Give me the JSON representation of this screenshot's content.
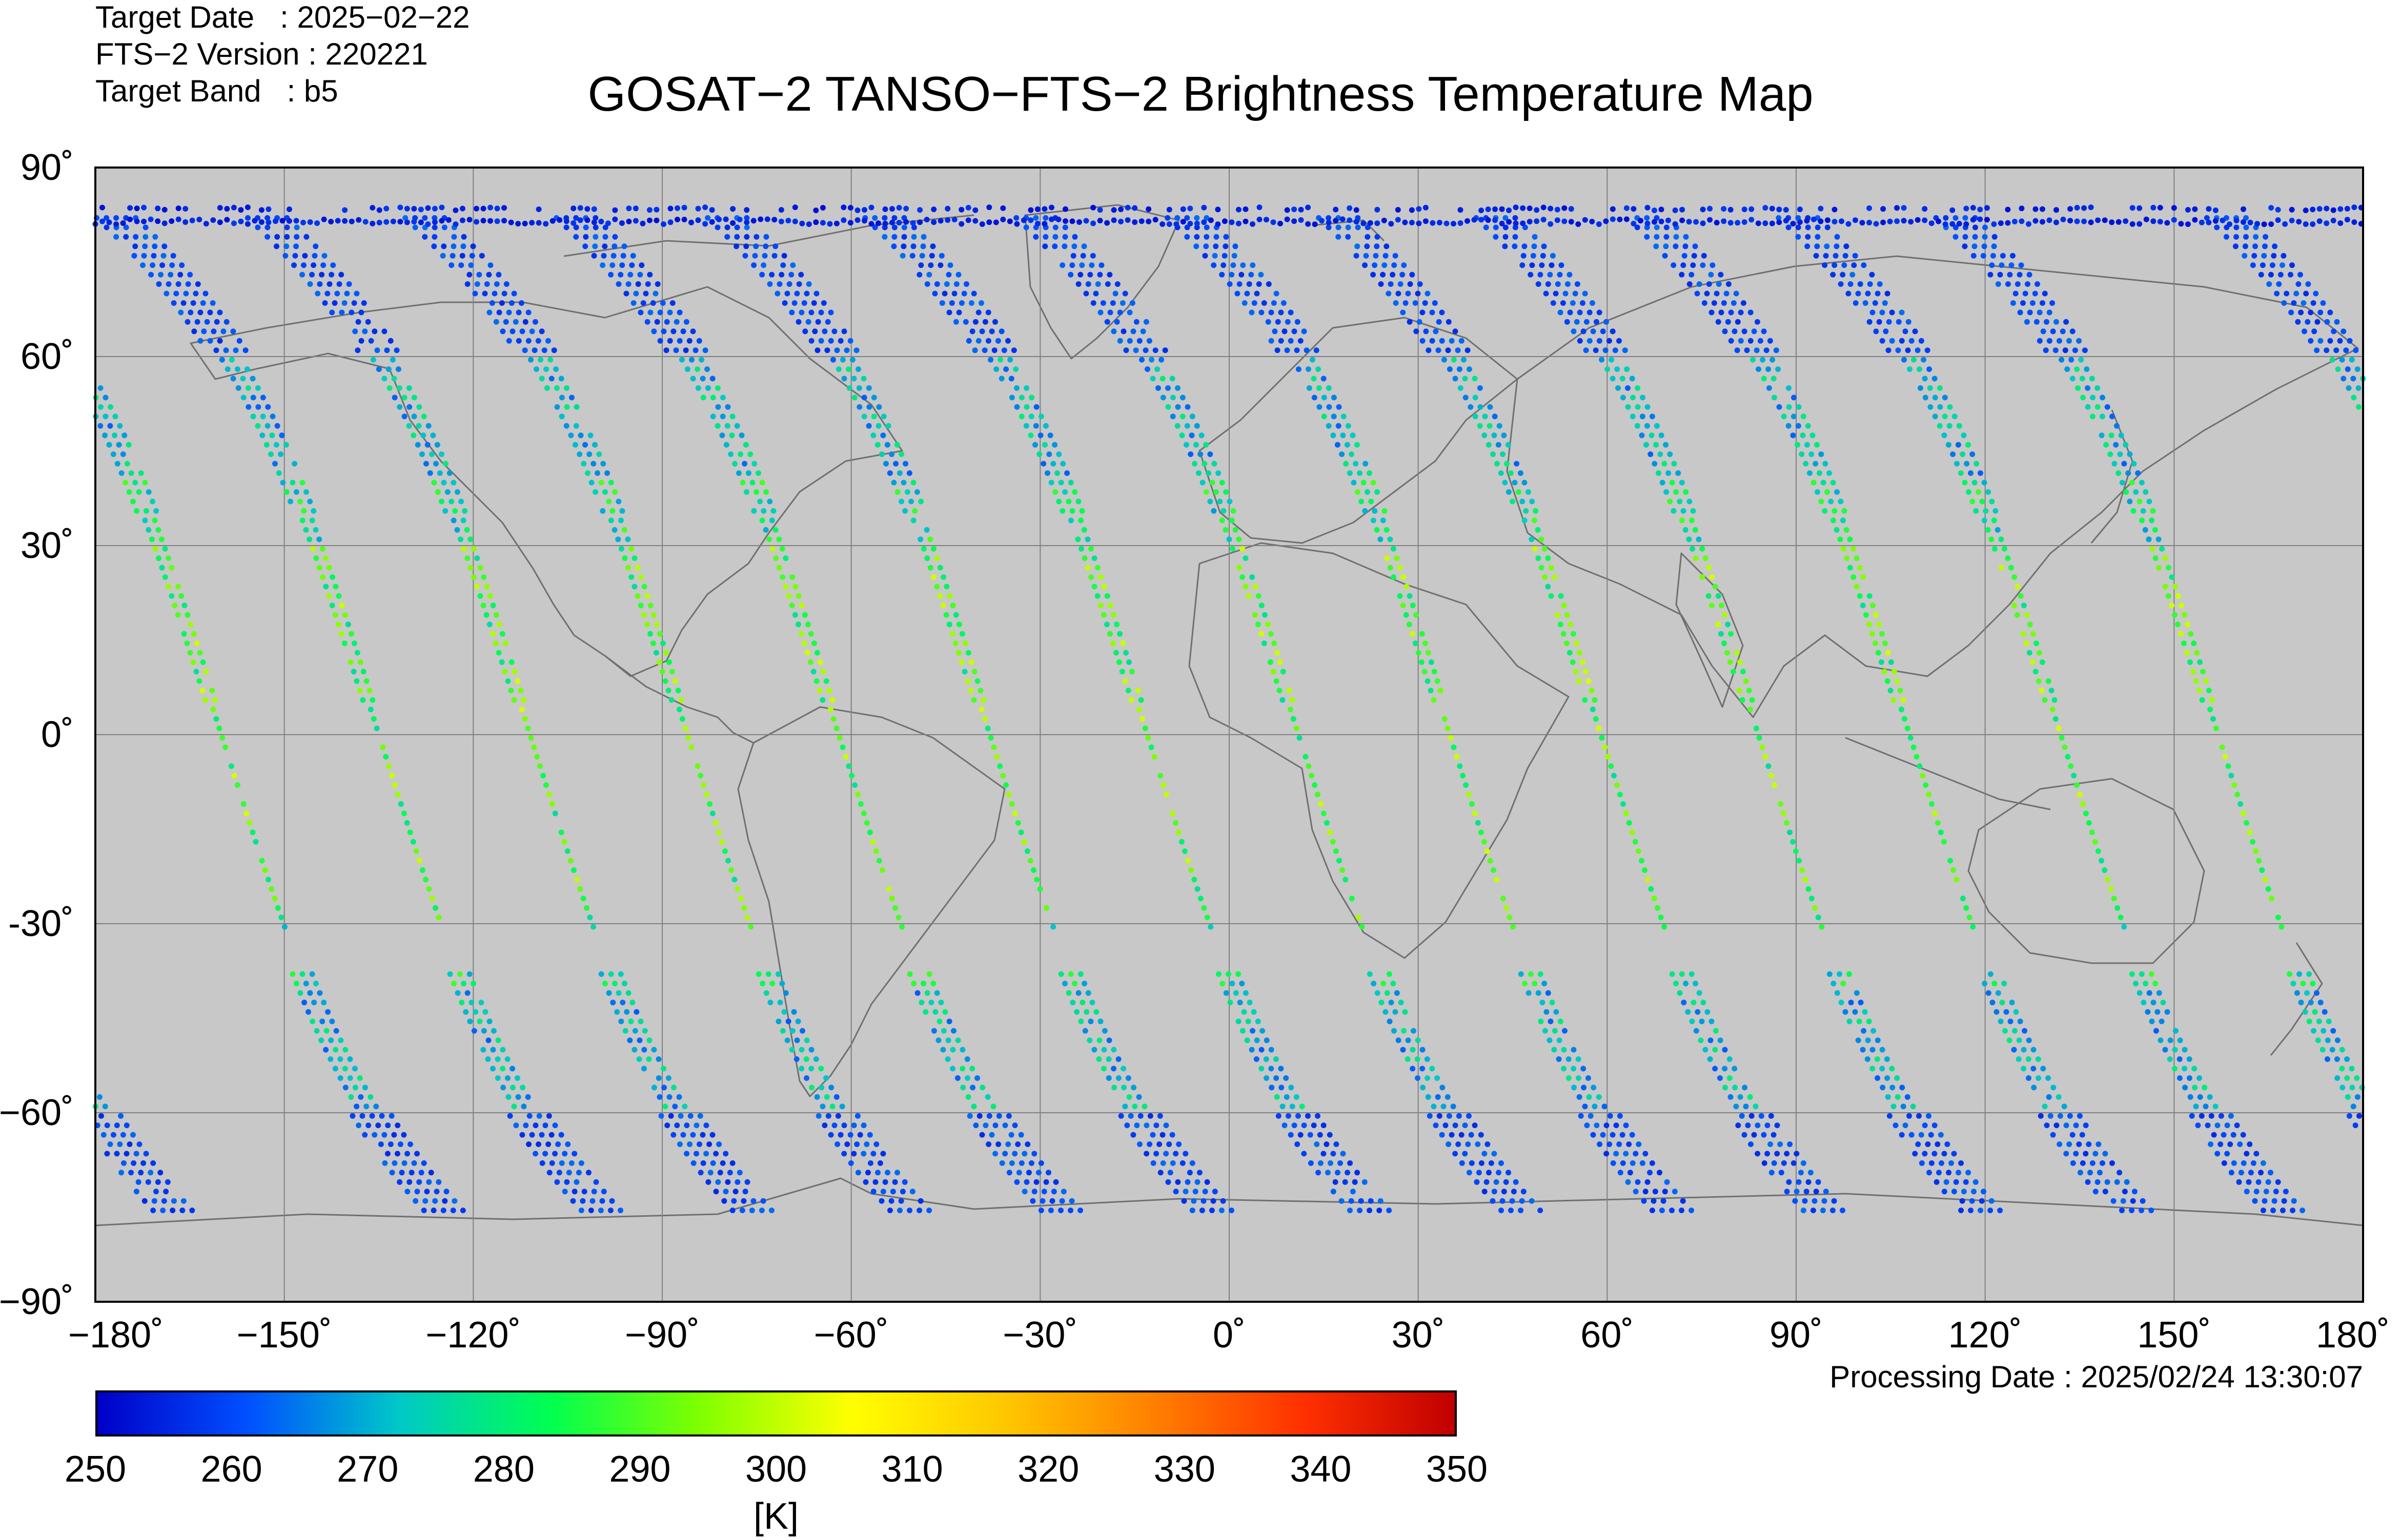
{
  "header": {
    "target_date": "Target Date   : 2025−02−22",
    "version": "FTS−2 Version : 220221",
    "band": "Target Band   : b5"
  },
  "title": "GOSAT−2 TANSO−FTS−2 Brightness Temperature Map",
  "y_ticks": [
    "90˚",
    "60˚",
    "30˚",
    "0˚",
    "-30˚",
    "−60˚",
    "−90˚"
  ],
  "x_ticks": [
    "−180˚",
    "−150˚",
    "−120˚",
    "−90˚",
    "−60˚",
    "−30˚",
    "0˚",
    "30˚",
    "60˚",
    "90˚",
    "120˚",
    "150˚",
    "180˚"
  ],
  "processing_date": "Processing Date : 2025/02/24 13:30:07",
  "colorbar": {
    "ticks": [
      "250",
      "260",
      "270",
      "280",
      "290",
      "300",
      "310",
      "320",
      "330",
      "340",
      "350"
    ],
    "unit": "[K]",
    "min": 250,
    "max": 350,
    "stops": [
      "#0000c8",
      "#0050ff",
      "#00c8c8",
      "#00ff50",
      "#80ff00",
      "#ffff00",
      "#ffc800",
      "#ff8000",
      "#ff3000",
      "#c00000"
    ]
  },
  "colors": {
    "ocean": "#c8c8c8",
    "land_outline": "#707070",
    "grid": "#808080",
    "frame": "#000000"
  },
  "map": {
    "projection": "equirectangular",
    "lon_range": [
      -180,
      180
    ],
    "lat_range": [
      -90,
      90
    ],
    "gridlines_lon": [
      -150,
      -120,
      -90,
      -60,
      -30,
      0,
      30,
      60,
      90,
      120,
      150
    ],
    "gridlines_lat": [
      -60,
      -30,
      0,
      30,
      60
    ]
  },
  "chart_data": {
    "type": "scatter",
    "title": "GOSAT−2 TANSO−FTS−2 Brightness Temperature Map",
    "x_label": "",
    "y_label": "",
    "xlim": [
      -180,
      180
    ],
    "ylim": [
      -90,
      90
    ],
    "color_scale": {
      "min": 250,
      "max": 350,
      "unit": "[K]"
    },
    "tracks": [
      {
        "lon_eq": -160.0
      },
      {
        "lon_eq": -135.0
      },
      {
        "lon_eq": -111.0
      },
      {
        "lon_eq": -86.0
      },
      {
        "lon_eq": -62.0
      },
      {
        "lon_eq": -38.0
      },
      {
        "lon_eq": -13.0
      },
      {
        "lon_eq": 11.0
      },
      {
        "lon_eq": 35.0
      },
      {
        "lon_eq": 59.0
      },
      {
        "lon_eq": 84.0
      },
      {
        "lon_eq": 108.0
      },
      {
        "lon_eq": 132.0
      },
      {
        "lon_eq": 157.0
      }
    ]
  }
}
